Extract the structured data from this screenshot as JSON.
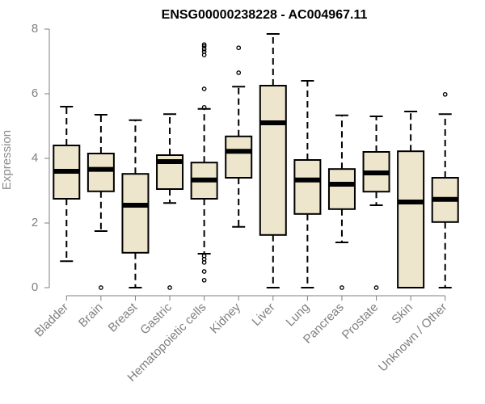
{
  "chart_data": {
    "type": "boxplot",
    "title": "ENSG00000238228 - AC004967.11",
    "xlabel": "",
    "ylabel": "Expression",
    "ylim": [
      0,
      8
    ],
    "yticks": [
      0,
      2,
      4,
      6,
      8
    ],
    "colors": {
      "box_fill": "#ede6cc",
      "stroke": "#000000",
      "axis": "#7f7f7f"
    },
    "categories": [
      "Bladder",
      "Brain",
      "Breast",
      "Gastric",
      "Hematopoietic cells",
      "Kidney",
      "Liver",
      "Lung",
      "Pancreas",
      "Prostate",
      "Skin",
      "Unknown / Other"
    ],
    "boxes": [
      {
        "q1": 2.75,
        "median": 3.6,
        "q3": 4.4,
        "whisker_low": 0.82,
        "whisker_high": 5.6,
        "outliers": []
      },
      {
        "q1": 2.98,
        "median": 3.66,
        "q3": 4.15,
        "whisker_low": 1.75,
        "whisker_high": 5.35,
        "outliers": [
          0
        ]
      },
      {
        "q1": 1.08,
        "median": 2.55,
        "q3": 3.52,
        "whisker_low": 0,
        "whisker_high": 5.18,
        "outliers": []
      },
      {
        "q1": 3.05,
        "median": 3.9,
        "q3": 4.1,
        "whisker_low": 2.62,
        "whisker_high": 5.37,
        "outliers": [
          0
        ]
      },
      {
        "q1": 2.75,
        "median": 3.33,
        "q3": 3.87,
        "whisker_low": 1.05,
        "whisker_high": 5.53,
        "outliers": [
          0.23,
          0.5,
          0.78,
          0.88,
          0.98,
          5.58,
          6.15,
          7.2,
          7.3,
          7.38,
          7.47,
          7.52
        ]
      },
      {
        "q1": 3.4,
        "median": 4.22,
        "q3": 4.68,
        "whisker_low": 1.88,
        "whisker_high": 6.22,
        "outliers": [
          6.65,
          7.42
        ]
      },
      {
        "q1": 1.63,
        "median": 5.1,
        "q3": 6.25,
        "whisker_low": 0,
        "whisker_high": 7.85,
        "outliers": []
      },
      {
        "q1": 2.28,
        "median": 3.33,
        "q3": 3.95,
        "whisker_low": 0,
        "whisker_high": 6.4,
        "outliers": []
      },
      {
        "q1": 2.43,
        "median": 3.2,
        "q3": 3.67,
        "whisker_low": 1.4,
        "whisker_high": 5.33,
        "outliers": [
          0
        ]
      },
      {
        "q1": 2.97,
        "median": 3.55,
        "q3": 4.2,
        "whisker_low": 2.55,
        "whisker_high": 5.3,
        "outliers": [
          0
        ]
      },
      {
        "q1": 0,
        "median": 2.65,
        "q3": 4.22,
        "whisker_low": 0,
        "whisker_high": 5.45,
        "outliers": []
      },
      {
        "q1": 2.03,
        "median": 2.73,
        "q3": 3.4,
        "whisker_low": 0,
        "whisker_high": 5.37,
        "outliers": [
          5.98
        ]
      }
    ]
  }
}
